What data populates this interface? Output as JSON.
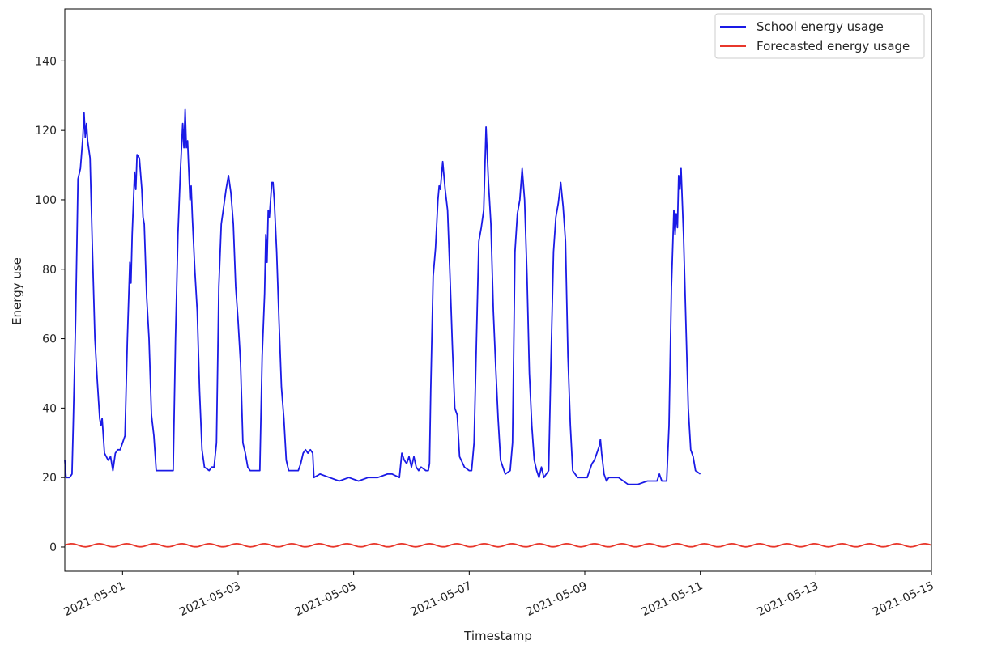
{
  "chart_data": {
    "type": "line",
    "xlabel": "Timestamp",
    "ylabel": "Energy use",
    "x_range": [
      "2021-04-30T00:00",
      "2021-05-15T00:00"
    ],
    "ylim": [
      -7,
      155
    ],
    "grid": false,
    "legend_position": "top-right",
    "x_ticks": [
      "2021-05-01",
      "2021-05-03",
      "2021-05-05",
      "2021-05-07",
      "2021-05-09",
      "2021-05-11",
      "2021-05-13",
      "2021-05-15"
    ],
    "y_ticks": [
      0,
      20,
      40,
      60,
      80,
      100,
      120,
      140
    ],
    "series": [
      {
        "name": "School energy usage",
        "color": "#1a1ae6",
        "points": [
          [
            "2021-04-30T00:00",
            25
          ],
          [
            "2021-04-30T00:30",
            20
          ],
          [
            "2021-04-30T02:00",
            20
          ],
          [
            "2021-04-30T03:00",
            21
          ],
          [
            "2021-04-30T03:30",
            35
          ],
          [
            "2021-04-30T04:30",
            66
          ],
          [
            "2021-04-30T05:30",
            106
          ],
          [
            "2021-04-30T06:30",
            109
          ],
          [
            "2021-04-30T07:30",
            118
          ],
          [
            "2021-04-30T08:00",
            125
          ],
          [
            "2021-04-30T08:30",
            118
          ],
          [
            "2021-04-30T09:00",
            122
          ],
          [
            "2021-04-30T09:30",
            117
          ],
          [
            "2021-04-30T10:30",
            112
          ],
          [
            "2021-04-30T11:30",
            85
          ],
          [
            "2021-04-30T12:30",
            60
          ],
          [
            "2021-04-30T13:30",
            48
          ],
          [
            "2021-04-30T14:30",
            37
          ],
          [
            "2021-04-30T15:00",
            35
          ],
          [
            "2021-04-30T15:30",
            37
          ],
          [
            "2021-04-30T16:30",
            27
          ],
          [
            "2021-04-30T18:00",
            25
          ],
          [
            "2021-04-30T19:00",
            26
          ],
          [
            "2021-04-30T20:00",
            22
          ],
          [
            "2021-04-30T21:00",
            27
          ],
          [
            "2021-04-30T22:00",
            28
          ],
          [
            "2021-04-30T23:00",
            28
          ],
          [
            "2021-05-01T01:00",
            32
          ],
          [
            "2021-05-01T02:00",
            60
          ],
          [
            "2021-05-01T03:00",
            82
          ],
          [
            "2021-05-01T03:30",
            76
          ],
          [
            "2021-05-01T04:00",
            90
          ],
          [
            "2021-05-01T05:00",
            108
          ],
          [
            "2021-05-01T05:30",
            103
          ],
          [
            "2021-05-01T06:00",
            113
          ],
          [
            "2021-05-01T07:00",
            112
          ],
          [
            "2021-05-01T08:00",
            103
          ],
          [
            "2021-05-01T08:30",
            95
          ],
          [
            "2021-05-01T09:00",
            93
          ],
          [
            "2021-05-01T10:00",
            72
          ],
          [
            "2021-05-01T11:00",
            60
          ],
          [
            "2021-05-01T12:00",
            38
          ],
          [
            "2021-05-01T13:00",
            32
          ],
          [
            "2021-05-01T14:00",
            22
          ],
          [
            "2021-05-01T15:00",
            22
          ],
          [
            "2021-05-01T20:00",
            22
          ],
          [
            "2021-05-01T21:00",
            22
          ],
          [
            "2021-05-01T22:00",
            60
          ],
          [
            "2021-05-01T23:00",
            90
          ],
          [
            "2021-05-02T00:00",
            108
          ],
          [
            "2021-05-02T01:00",
            122
          ],
          [
            "2021-05-02T01:30",
            115
          ],
          [
            "2021-05-02T02:00",
            126
          ],
          [
            "2021-05-02T02:30",
            115
          ],
          [
            "2021-05-02T03:00",
            117
          ],
          [
            "2021-05-02T04:00",
            100
          ],
          [
            "2021-05-02T04:30",
            104
          ],
          [
            "2021-05-02T05:00",
            95
          ],
          [
            "2021-05-02T06:00",
            80
          ],
          [
            "2021-05-02T07:00",
            68
          ],
          [
            "2021-05-02T08:00",
            45
          ],
          [
            "2021-05-02T09:00",
            28
          ],
          [
            "2021-05-02T10:00",
            23
          ],
          [
            "2021-05-02T12:00",
            22
          ],
          [
            "2021-05-02T13:00",
            23
          ],
          [
            "2021-05-02T14:00",
            23
          ],
          [
            "2021-05-02T15:00",
            30
          ],
          [
            "2021-05-02T16:00",
            75
          ],
          [
            "2021-05-02T17:00",
            93
          ],
          [
            "2021-05-02T18:00",
            98
          ],
          [
            "2021-05-02T19:00",
            103
          ],
          [
            "2021-05-02T20:00",
            107
          ],
          [
            "2021-05-02T21:00",
            102
          ],
          [
            "2021-05-02T22:00",
            93
          ],
          [
            "2021-05-02T23:00",
            75
          ],
          [
            "2021-05-03T00:00",
            65
          ],
          [
            "2021-05-03T01:00",
            53
          ],
          [
            "2021-05-03T02:00",
            30
          ],
          [
            "2021-05-03T03:00",
            27
          ],
          [
            "2021-05-03T04:00",
            23
          ],
          [
            "2021-05-03T05:00",
            22
          ],
          [
            "2021-05-03T08:00",
            22
          ],
          [
            "2021-05-03T09:00",
            22
          ],
          [
            "2021-05-03T10:00",
            55
          ],
          [
            "2021-05-03T11:00",
            73
          ],
          [
            "2021-05-03T11:30",
            90
          ],
          [
            "2021-05-03T12:00",
            82
          ],
          [
            "2021-05-03T12:30",
            97
          ],
          [
            "2021-05-03T13:00",
            95
          ],
          [
            "2021-05-03T14:00",
            105
          ],
          [
            "2021-05-03T14:30",
            105
          ],
          [
            "2021-05-03T15:00",
            100
          ],
          [
            "2021-05-03T16:00",
            85
          ],
          [
            "2021-05-03T17:00",
            65
          ],
          [
            "2021-05-03T18:00",
            46
          ],
          [
            "2021-05-03T19:00",
            37
          ],
          [
            "2021-05-03T20:00",
            25
          ],
          [
            "2021-05-03T21:00",
            22
          ],
          [
            "2021-05-03T23:00",
            22
          ],
          [
            "2021-05-04T01:00",
            22
          ],
          [
            "2021-05-04T02:00",
            24
          ],
          [
            "2021-05-04T03:00",
            27
          ],
          [
            "2021-05-04T04:00",
            28
          ],
          [
            "2021-05-04T05:00",
            27
          ],
          [
            "2021-05-04T06:00",
            28
          ],
          [
            "2021-05-04T07:00",
            27
          ],
          [
            "2021-05-04T07:30",
            20
          ],
          [
            "2021-05-04T10:00",
            21
          ],
          [
            "2021-05-04T14:00",
            20
          ],
          [
            "2021-05-04T18:00",
            19
          ],
          [
            "2021-05-04T22:00",
            20
          ],
          [
            "2021-05-05T02:00",
            19
          ],
          [
            "2021-05-05T06:00",
            20
          ],
          [
            "2021-05-05T10:00",
            20
          ],
          [
            "2021-05-05T14:00",
            21
          ],
          [
            "2021-05-05T16:00",
            21
          ],
          [
            "2021-05-05T19:00",
            20
          ],
          [
            "2021-05-05T20:00",
            27
          ],
          [
            "2021-05-05T21:00",
            25
          ],
          [
            "2021-05-05T22:00",
            24
          ],
          [
            "2021-05-05T23:00",
            26
          ],
          [
            "2021-05-06T00:00",
            23
          ],
          [
            "2021-05-06T01:00",
            26
          ],
          [
            "2021-05-06T02:00",
            23
          ],
          [
            "2021-05-06T03:00",
            22
          ],
          [
            "2021-05-06T04:00",
            23
          ],
          [
            "2021-05-06T06:00",
            22
          ],
          [
            "2021-05-06T07:00",
            22
          ],
          [
            "2021-05-06T07:30",
            24
          ],
          [
            "2021-05-06T08:00",
            45
          ],
          [
            "2021-05-06T09:00",
            78
          ],
          [
            "2021-05-06T10:00",
            86
          ],
          [
            "2021-05-06T11:00",
            100
          ],
          [
            "2021-05-06T11:30",
            104
          ],
          [
            "2021-05-06T12:00",
            103
          ],
          [
            "2021-05-06T13:00",
            111
          ],
          [
            "2021-05-06T14:00",
            103
          ],
          [
            "2021-05-06T15:00",
            97
          ],
          [
            "2021-05-06T16:00",
            78
          ],
          [
            "2021-05-06T17:00",
            58
          ],
          [
            "2021-05-06T18:00",
            40
          ],
          [
            "2021-05-06T19:00",
            38
          ],
          [
            "2021-05-06T20:00",
            26
          ],
          [
            "2021-05-06T22:00",
            23
          ],
          [
            "2021-05-07T00:00",
            22
          ],
          [
            "2021-05-07T01:00",
            22
          ],
          [
            "2021-05-07T02:00",
            30
          ],
          [
            "2021-05-07T03:00",
            60
          ],
          [
            "2021-05-07T04:00",
            88
          ],
          [
            "2021-05-07T05:00",
            92
          ],
          [
            "2021-05-07T06:00",
            97
          ],
          [
            "2021-05-07T07:00",
            121
          ],
          [
            "2021-05-07T08:00",
            105
          ],
          [
            "2021-05-07T09:00",
            93
          ],
          [
            "2021-05-07T10:00",
            68
          ],
          [
            "2021-05-07T11:00",
            52
          ],
          [
            "2021-05-07T12:00",
            37
          ],
          [
            "2021-05-07T13:00",
            25
          ],
          [
            "2021-05-07T14:00",
            23
          ],
          [
            "2021-05-07T15:00",
            21
          ],
          [
            "2021-05-07T17:00",
            22
          ],
          [
            "2021-05-07T18:00",
            30
          ],
          [
            "2021-05-07T19:00",
            85
          ],
          [
            "2021-05-07T20:00",
            96
          ],
          [
            "2021-05-07T21:00",
            100
          ],
          [
            "2021-05-07T22:00",
            109
          ],
          [
            "2021-05-07T23:00",
            100
          ],
          [
            "2021-05-08T00:00",
            78
          ],
          [
            "2021-05-08T01:00",
            50
          ],
          [
            "2021-05-08T02:00",
            35
          ],
          [
            "2021-05-08T03:00",
            25
          ],
          [
            "2021-05-08T04:00",
            22
          ],
          [
            "2021-05-08T05:00",
            20
          ],
          [
            "2021-05-08T06:00",
            23
          ],
          [
            "2021-05-08T07:00",
            20
          ],
          [
            "2021-05-08T09:00",
            22
          ],
          [
            "2021-05-08T10:00",
            55
          ],
          [
            "2021-05-08T11:00",
            85
          ],
          [
            "2021-05-08T12:00",
            95
          ],
          [
            "2021-05-08T13:00",
            99
          ],
          [
            "2021-05-08T14:00",
            105
          ],
          [
            "2021-05-08T15:00",
            98
          ],
          [
            "2021-05-08T16:00",
            88
          ],
          [
            "2021-05-08T17:00",
            55
          ],
          [
            "2021-05-08T18:00",
            35
          ],
          [
            "2021-05-08T19:00",
            22
          ],
          [
            "2021-05-08T21:00",
            20
          ],
          [
            "2021-05-08T23:00",
            20
          ],
          [
            "2021-05-09T01:00",
            20
          ],
          [
            "2021-05-09T02:00",
            22
          ],
          [
            "2021-05-09T03:00",
            24
          ],
          [
            "2021-05-09T04:00",
            25
          ],
          [
            "2021-05-09T05:00",
            27
          ],
          [
            "2021-05-09T06:00",
            29
          ],
          [
            "2021-05-09T06:30",
            31
          ],
          [
            "2021-05-09T07:00",
            27
          ],
          [
            "2021-05-09T08:00",
            21
          ],
          [
            "2021-05-09T09:00",
            19
          ],
          [
            "2021-05-09T10:00",
            20
          ],
          [
            "2021-05-09T14:00",
            20
          ],
          [
            "2021-05-09T18:00",
            18
          ],
          [
            "2021-05-09T22:00",
            18
          ],
          [
            "2021-05-10T02:00",
            19
          ],
          [
            "2021-05-10T06:00",
            19
          ],
          [
            "2021-05-10T07:00",
            21
          ],
          [
            "2021-05-10T08:00",
            19
          ],
          [
            "2021-05-10T10:00",
            19
          ],
          [
            "2021-05-10T11:00",
            35
          ],
          [
            "2021-05-10T12:00",
            75
          ],
          [
            "2021-05-10T13:00",
            97
          ],
          [
            "2021-05-10T13:30",
            90
          ],
          [
            "2021-05-10T14:00",
            96
          ],
          [
            "2021-05-10T14:30",
            92
          ],
          [
            "2021-05-10T15:00",
            107
          ],
          [
            "2021-05-10T15:30",
            103
          ],
          [
            "2021-05-10T16:00",
            109
          ],
          [
            "2021-05-10T17:00",
            90
          ],
          [
            "2021-05-10T18:00",
            65
          ],
          [
            "2021-05-10T19:00",
            40
          ],
          [
            "2021-05-10T20:00",
            28
          ],
          [
            "2021-05-10T21:00",
            26
          ],
          [
            "2021-05-10T22:00",
            22
          ],
          [
            "2021-05-10T23:59",
            21
          ]
        ]
      },
      {
        "name": "Forecasted energy usage",
        "color": "#e8372b",
        "points": "oscillating near 0 (range about 0 to 1) across the full period"
      }
    ],
    "legend": [
      "School energy usage",
      "Forecasted energy usage"
    ]
  }
}
